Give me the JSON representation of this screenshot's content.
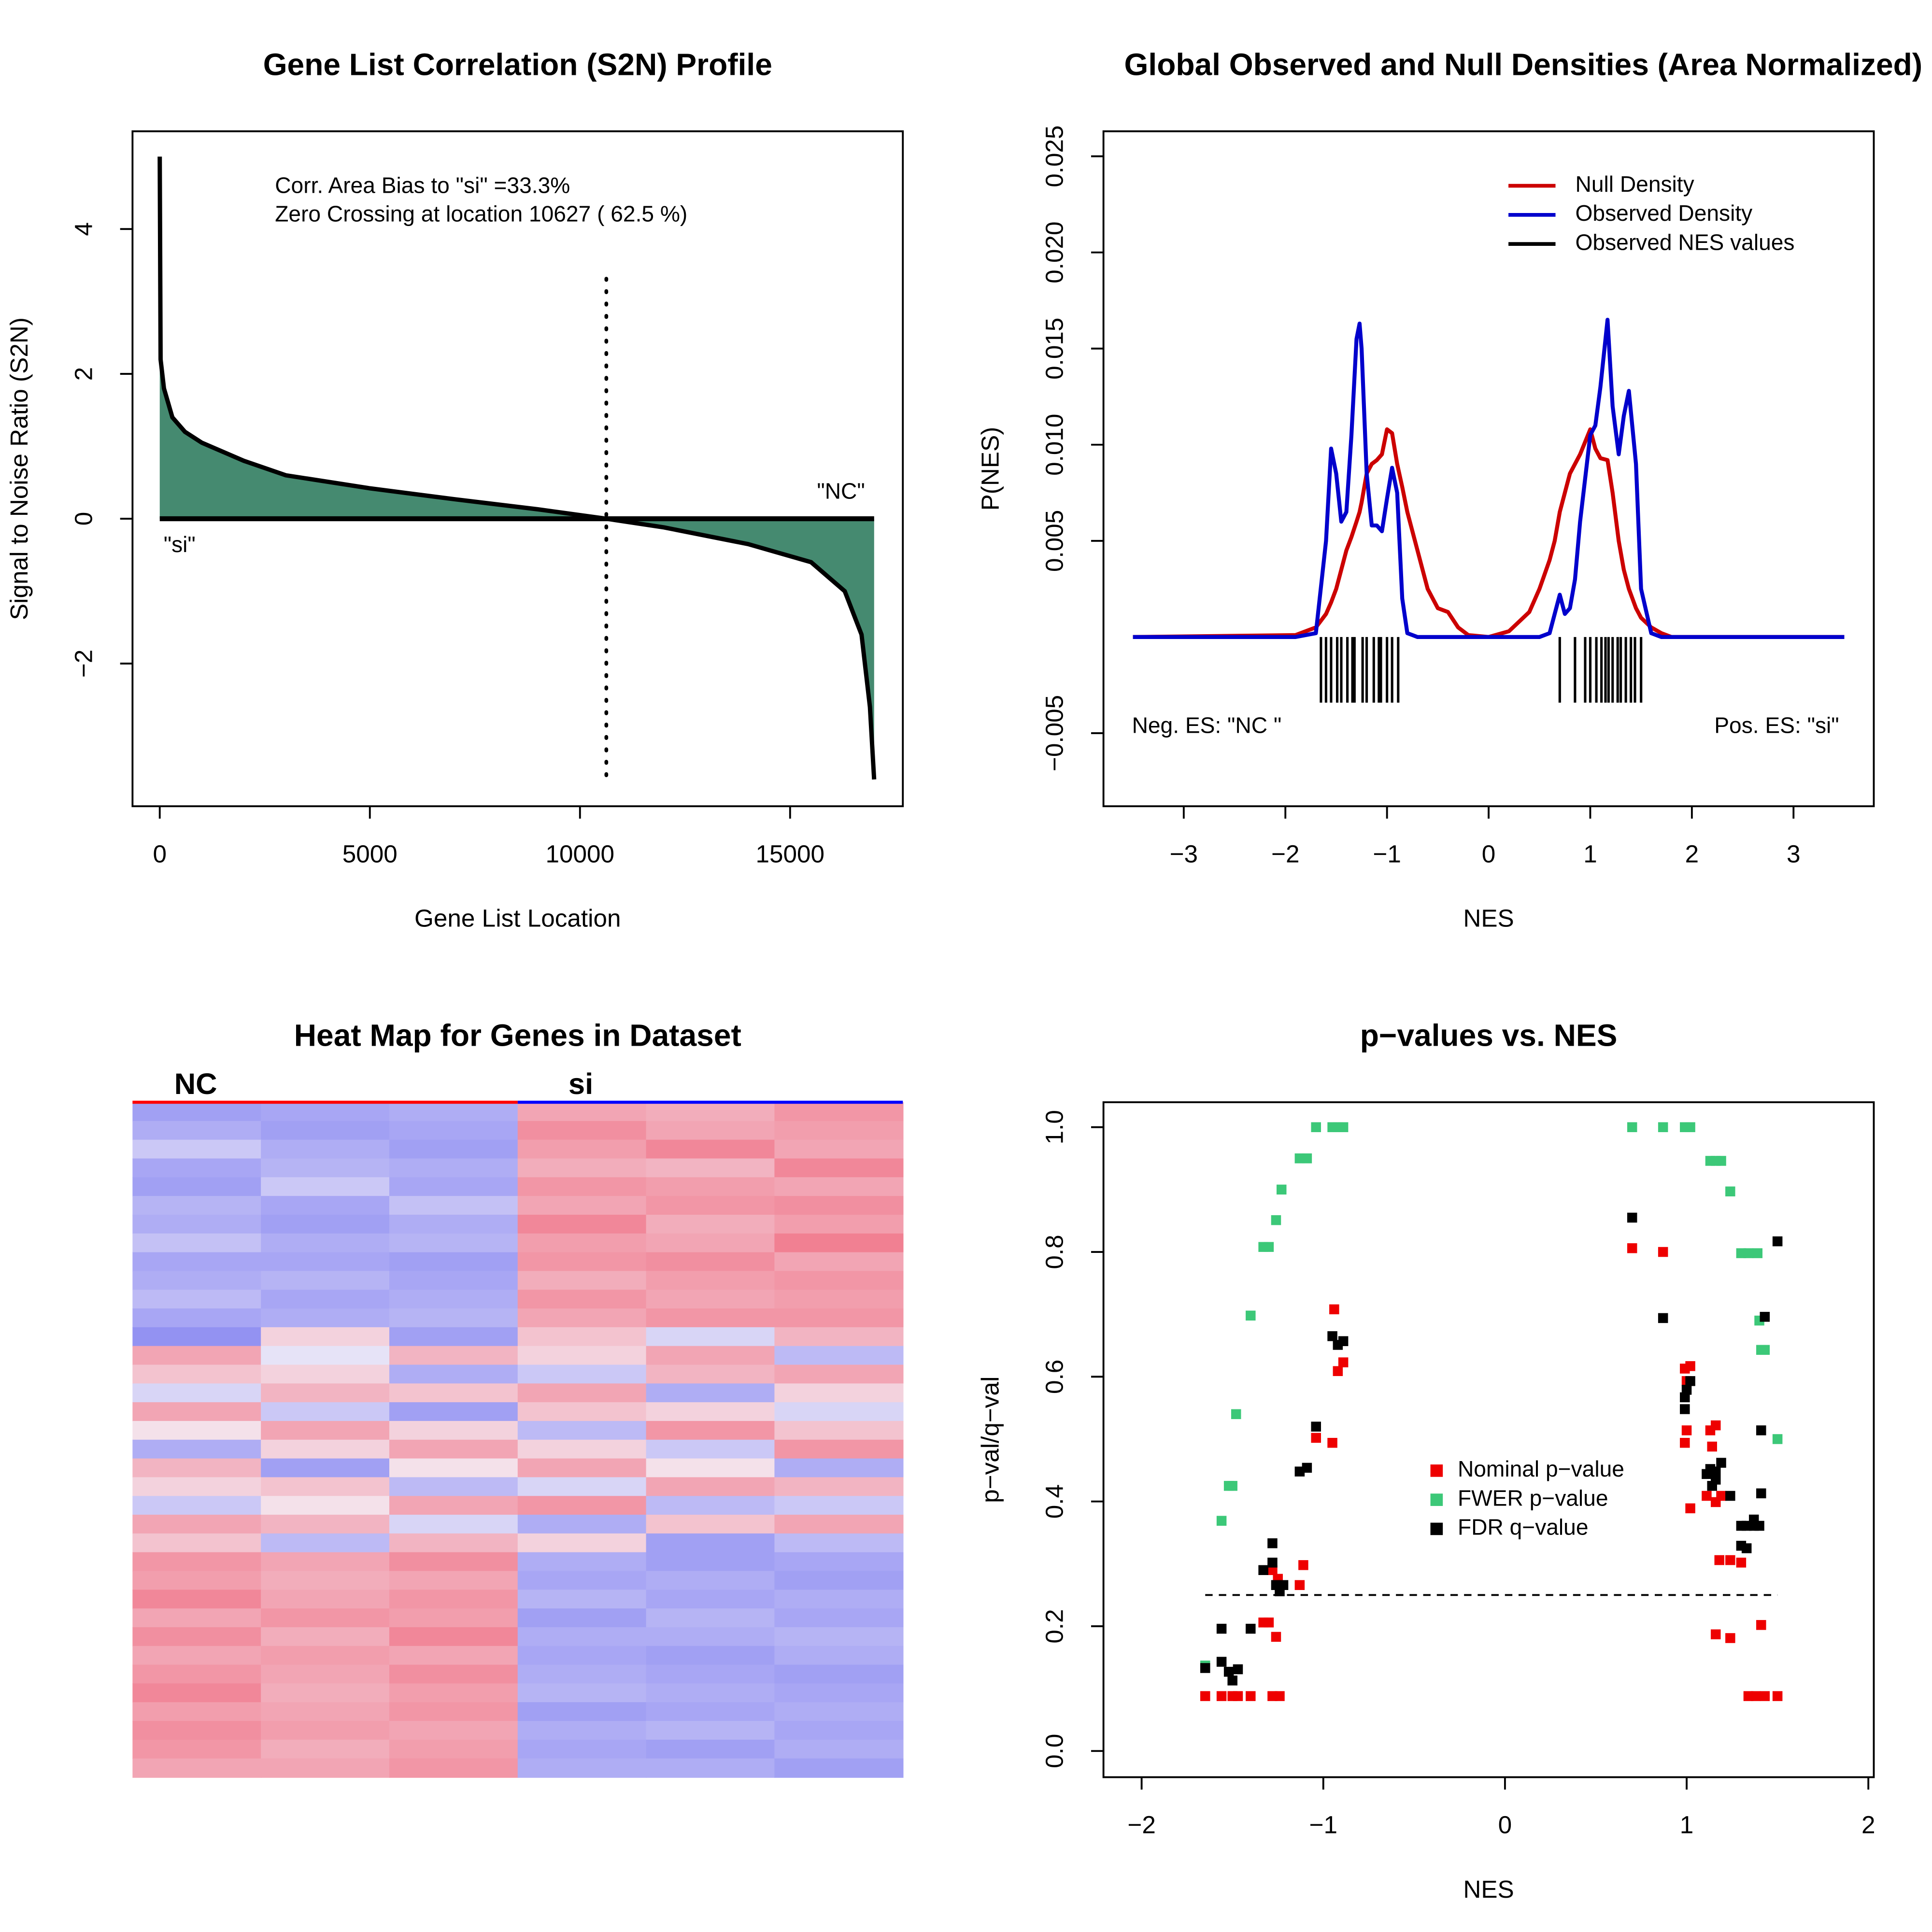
{
  "chart_data": [
    {
      "type": "area",
      "title": "Gene List Correlation (S2N) Profile",
      "x_label": "Gene List Location",
      "y_label": "Signal to Noise Ratio (S2N)",
      "x": [
        0,
        20,
        100,
        300,
        600,
        1000,
        2000,
        3000,
        5000,
        7000,
        9000,
        10627,
        12000,
        14000,
        15500,
        16300,
        16700,
        16900,
        17000
      ],
      "values": [
        5.0,
        2.2,
        1.8,
        1.4,
        1.2,
        1.05,
        0.8,
        0.6,
        0.42,
        0.27,
        0.13,
        0,
        -0.12,
        -0.35,
        -0.6,
        -1.0,
        -1.6,
        -2.6,
        -3.6
      ],
      "color": "#458a70",
      "zero_crossing": 10627,
      "xlim": [
        -648,
        17683
      ],
      "ylim": [
        -3.97,
        5.35
      ],
      "xticks": [
        0,
        5000,
        10000,
        15000
      ],
      "yticks": [
        {
          "value": -2,
          "label": "−2"
        },
        0,
        2,
        4
      ],
      "annotations": [
        "Corr. Area Bias to \"si\" =33.3%",
        "Zero Crossing at location  10627  ( 62.5  %)",
        "\"NC\"",
        "\"si\""
      ]
    },
    {
      "type": "line",
      "title": "Global Observed and Null Densities (Area Normalized)",
      "x_label": "NES",
      "y_label": "P(NES)",
      "legend": "topright",
      "x": [
        -3.5,
        -1.9,
        -1.7,
        -1.6,
        -1.55,
        -1.5,
        -1.45,
        -1.4,
        -1.35,
        -1.3,
        -1.27,
        -1.25,
        -1.2,
        -1.15,
        -1.1,
        -1.05,
        -1.0,
        -0.95,
        -0.9,
        -0.85,
        -0.8,
        -0.7,
        -0.6,
        -0.5,
        -0.4,
        -0.3,
        -0.2,
        0,
        0.2,
        0.4,
        0.5,
        0.6,
        0.65,
        0.7,
        0.75,
        0.8,
        0.85,
        0.9,
        1.0,
        1.05,
        1.1,
        1.17,
        1.22,
        1.28,
        1.33,
        1.38,
        1.45,
        1.5,
        1.6,
        1.7,
        1.8,
        3.5
      ],
      "series": [
        {
          "name": "Null Density",
          "color": "#cc0000",
          "values": [
            0,
            0.0001,
            0.0005,
            0.0012,
            0.0018,
            0.0025,
            0.0035,
            0.0045,
            0.0052,
            0.006,
            0.0065,
            0.007,
            0.0085,
            0.009,
            0.0092,
            0.0095,
            0.0108,
            0.0106,
            0.009,
            0.0078,
            0.0065,
            0.0045,
            0.0025,
            0.0015,
            0.0013,
            0.0005,
            0.0001,
            0,
            0.0003,
            0.0013,
            0.0025,
            0.004,
            0.005,
            0.0065,
            0.0075,
            0.0085,
            0.009,
            0.0095,
            0.0108,
            0.0098,
            0.0093,
            0.0092,
            0.0075,
            0.005,
            0.0035,
            0.0025,
            0.0015,
            0.001,
            0.0005,
            0.0002,
            0,
            0
          ]
        },
        {
          "name": "Observed Density",
          "color": "#0000cc",
          "values": [
            0,
            0,
            0.0002,
            0.005,
            0.0098,
            0.0085,
            0.006,
            0.0065,
            0.0105,
            0.0155,
            0.0163,
            0.015,
            0.0085,
            0.0058,
            0.0058,
            0.0055,
            0.0072,
            0.0088,
            0.0075,
            0.002,
            0.0002,
            0,
            0,
            0,
            0,
            0,
            0,
            0,
            0,
            0,
            0,
            0.0002,
            0.0012,
            0.0022,
            0.0012,
            0.0015,
            0.003,
            0.006,
            0.0105,
            0.011,
            0.013,
            0.0165,
            0.012,
            0.0095,
            0.0115,
            0.0128,
            0.009,
            0.0025,
            0.0002,
            0,
            0,
            0
          ]
        },
        {
          "name": "Observed NES values",
          "color": "#000000",
          "mark": "rug",
          "nes": [
            -1.65,
            -1.6,
            -1.55,
            -1.49,
            -1.45,
            -1.39,
            -1.34,
            -1.32,
            -1.24,
            -1.2,
            -1.13,
            -1.08,
            -1.06,
            -1.0,
            -0.95,
            -0.89,
            0.7,
            0.85,
            0.95,
            1.0,
            1.06,
            1.11,
            1.15,
            1.18,
            1.22,
            1.27,
            1.3,
            1.35,
            1.4,
            1.44,
            1.5
          ]
        }
      ],
      "xlim": [
        -3.79,
        3.79
      ],
      "ylim": [
        -0.0088,
        0.0263
      ],
      "xticks": [
        {
          "value": -3,
          "label": "−3"
        },
        {
          "value": -2,
          "label": "−2"
        },
        {
          "value": -1,
          "label": "−1"
        },
        0,
        1,
        2,
        3
      ],
      "yticks": [
        {
          "value": -0.005,
          "label": "−0.005"
        },
        0.005,
        {
          "value": 0.01,
          "label": "0.010"
        },
        0.015,
        {
          "value": 0.02,
          "label": "0.020"
        },
        0.025
      ],
      "annotations": [
        "Neg. ES: \"NC \"",
        "Pos. ES: \"si\""
      ]
    },
    {
      "type": "heatmap",
      "title": "Heat Map for Genes in Dataset",
      "groups": [
        "NC",
        "si"
      ],
      "group_colors": [
        "#ff0000",
        "#0000ff"
      ],
      "zlim": [
        -1,
        1
      ],
      "low_color": "#6a6af0",
      "mid_color": "#f4f0f8",
      "high_color": "#f05a70",
      "matrix": [
        [
          -0.6,
          -0.55,
          -0.5,
          0.5,
          0.45,
          0.6
        ],
        [
          -0.5,
          -0.6,
          -0.55,
          0.65,
          0.5,
          0.55
        ],
        [
          -0.3,
          -0.5,
          -0.6,
          0.55,
          0.7,
          0.5
        ],
        [
          -0.55,
          -0.45,
          -0.5,
          0.45,
          0.4,
          0.7
        ],
        [
          -0.6,
          -0.3,
          -0.55,
          0.6,
          0.55,
          0.5
        ],
        [
          -0.45,
          -0.55,
          -0.35,
          0.5,
          0.6,
          0.65
        ],
        [
          -0.5,
          -0.6,
          -0.5,
          0.7,
          0.45,
          0.55
        ],
        [
          -0.35,
          -0.5,
          -0.45,
          0.55,
          0.5,
          0.75
        ],
        [
          -0.55,
          -0.55,
          -0.6,
          0.6,
          0.65,
          0.5
        ],
        [
          -0.5,
          -0.45,
          -0.55,
          0.45,
          0.55,
          0.6
        ],
        [
          -0.4,
          -0.55,
          -0.5,
          0.6,
          0.5,
          0.55
        ],
        [
          -0.55,
          -0.5,
          -0.45,
          0.5,
          0.6,
          0.6
        ],
        [
          -0.7,
          0.2,
          -0.6,
          0.3,
          -0.2,
          0.4
        ],
        [
          0.5,
          -0.1,
          0.4,
          0.2,
          0.5,
          -0.4
        ],
        [
          0.3,
          0.2,
          -0.5,
          -0.3,
          0.4,
          0.5
        ],
        [
          -0.2,
          0.4,
          0.3,
          0.5,
          -0.5,
          0.2
        ],
        [
          0.5,
          -0.3,
          -0.6,
          0.3,
          0.2,
          -0.2
        ],
        [
          0.1,
          0.5,
          0.2,
          -0.4,
          0.6,
          0.3
        ],
        [
          -0.5,
          0.2,
          0.5,
          0.2,
          -0.3,
          0.6
        ],
        [
          0.4,
          -0.6,
          0.1,
          0.5,
          0.1,
          -0.5
        ],
        [
          0.2,
          0.3,
          -0.4,
          -0.2,
          0.5,
          0.4
        ],
        [
          -0.3,
          0.1,
          0.5,
          0.6,
          -0.4,
          -0.3
        ],
        [
          0.5,
          0.4,
          -0.2,
          -0.5,
          0.3,
          0.5
        ],
        [
          0.3,
          -0.4,
          0.4,
          0.2,
          -0.6,
          -0.4
        ],
        [
          0.6,
          0.5,
          0.65,
          -0.5,
          -0.6,
          -0.55
        ],
        [
          0.55,
          0.45,
          0.5,
          -0.55,
          -0.5,
          -0.6
        ],
        [
          0.7,
          0.5,
          0.6,
          -0.45,
          -0.55,
          -0.5
        ],
        [
          0.5,
          0.6,
          0.55,
          -0.6,
          -0.45,
          -0.55
        ],
        [
          0.65,
          0.45,
          0.7,
          -0.5,
          -0.5,
          -0.45
        ],
        [
          0.5,
          0.55,
          0.5,
          -0.55,
          -0.6,
          -0.5
        ],
        [
          0.6,
          0.5,
          0.65,
          -0.5,
          -0.55,
          -0.6
        ],
        [
          0.7,
          0.45,
          0.55,
          -0.45,
          -0.5,
          -0.55
        ],
        [
          0.55,
          0.5,
          0.6,
          -0.6,
          -0.55,
          -0.5
        ],
        [
          0.65,
          0.55,
          0.5,
          -0.5,
          -0.45,
          -0.55
        ],
        [
          0.6,
          0.45,
          0.55,
          -0.55,
          -0.6,
          -0.5
        ],
        [
          0.5,
          0.5,
          0.6,
          -0.5,
          -0.5,
          -0.6
        ]
      ]
    },
    {
      "type": "scatter",
      "title": "p−values vs. NES",
      "x_label": "NES",
      "y_label": "p−val/q−val",
      "legend": "center",
      "hline": 0.25,
      "series": [
        {
          "name": "Nominal p−value",
          "color": "#ee0000",
          "x": [
            -1.65,
            -1.56,
            -1.5,
            -1.47,
            -1.4,
            -1.28,
            -1.24,
            -1.33,
            -1.3,
            -1.26,
            -1.28,
            -1.25,
            -1.13,
            -1.11,
            -0.94,
            -0.92,
            -0.89,
            -0.95,
            -1.04,
            0.7,
            0.87,
            0.99,
            1.0,
            1.02,
            0.99,
            1.0,
            1.02,
            1.13,
            1.16,
            1.14,
            1.11,
            1.16,
            1.19,
            1.18,
            1.24,
            1.3,
            1.16,
            1.24,
            1.41,
            1.34,
            1.38,
            1.43,
            1.5
          ],
          "values": [
            0.088,
            0.088,
            0.088,
            0.088,
            0.088,
            0.088,
            0.088,
            0.206,
            0.206,
            0.183,
            0.29,
            0.276,
            0.266,
            0.298,
            0.708,
            0.609,
            0.623,
            0.494,
            0.502,
            0.806,
            0.8,
            0.613,
            0.593,
            0.617,
            0.494,
            0.514,
            0.389,
            0.514,
            0.522,
            0.488,
            0.409,
            0.399,
            0.409,
            0.306,
            0.306,
            0.302,
            0.187,
            0.181,
            0.202,
            0.088,
            0.088,
            0.088,
            0.088
          ]
        },
        {
          "name": "FWER p−value",
          "color": "#3cc878",
          "x": [
            -1.65,
            -1.56,
            -1.52,
            -1.5,
            -1.48,
            -1.4,
            -1.33,
            -1.3,
            -1.26,
            -1.23,
            -1.13,
            -1.09,
            -1.04,
            -0.95,
            -0.92,
            -0.89,
            0.7,
            0.87,
            0.99,
            1.02,
            1.13,
            1.16,
            1.19,
            1.24,
            1.3,
            1.34,
            1.39,
            1.4,
            1.41,
            1.43,
            1.5
          ],
          "values": [
            0.137,
            0.369,
            0.425,
            0.425,
            0.54,
            0.698,
            0.808,
            0.808,
            0.851,
            0.9,
            0.95,
            0.95,
            1.0,
            1.0,
            1.0,
            1.0,
            1.0,
            1.0,
            1.0,
            1.0,
            0.946,
            0.946,
            0.946,
            0.897,
            0.798,
            0.798,
            0.798,
            0.69,
            0.643,
            0.643,
            0.5
          ]
        },
        {
          "name": "FDR q−value",
          "color": "#000000",
          "x": [
            -1.65,
            -1.56,
            -1.52,
            -1.5,
            -1.47,
            -1.56,
            -1.4,
            -1.33,
            -1.28,
            -1.28,
            -1.26,
            -1.24,
            -1.22,
            -1.13,
            -1.09,
            -1.04,
            -0.95,
            -0.92,
            -0.89,
            0.7,
            0.87,
            0.99,
            1.0,
            1.02,
            0.99,
            1.11,
            1.13,
            1.16,
            1.14,
            1.16,
            1.19,
            1.24,
            1.3,
            1.33,
            1.37,
            1.3,
            1.33,
            1.37,
            1.4,
            1.41,
            1.41,
            1.43,
            1.5
          ],
          "values": [
            0.133,
            0.143,
            0.127,
            0.113,
            0.131,
            0.196,
            0.196,
            0.29,
            0.333,
            0.302,
            0.266,
            0.256,
            0.266,
            0.448,
            0.454,
            0.52,
            0.665,
            0.651,
            0.657,
            0.855,
            0.694,
            0.567,
            0.579,
            0.593,
            0.548,
            0.444,
            0.452,
            0.435,
            0.425,
            0.448,
            0.462,
            0.409,
            0.361,
            0.361,
            0.361,
            0.329,
            0.325,
            0.371,
            0.361,
            0.413,
            0.514,
            0.696,
            0.817
          ]
        }
      ],
      "xlim": [
        -2.21,
        2.03
      ],
      "ylim": [
        -0.042,
        1.04
      ],
      "xticks": [
        {
          "value": -2,
          "label": "−2"
        },
        {
          "value": -1,
          "label": "−1"
        },
        0,
        1,
        2
      ],
      "yticks": [
        {
          "value": 0,
          "label": "0.0"
        },
        0.2,
        0.4,
        0.6,
        0.8,
        {
          "value": 1,
          "label": "1.0"
        }
      ]
    }
  ]
}
